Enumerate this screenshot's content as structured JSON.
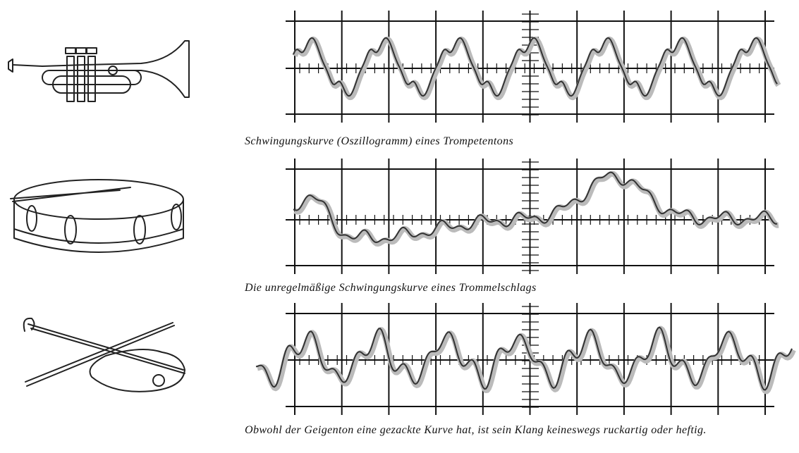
{
  "captions": [
    "Schwingungskurve (Oszillogramm) eines Trompetentons",
    "Die unregelmäßige Schwingungskurve eines Trommelschlags",
    "Obwohl der Geigenton eine gezackte Kurve hat, ist sein Klang keineswegs ruckartig oder heftig."
  ]
}
